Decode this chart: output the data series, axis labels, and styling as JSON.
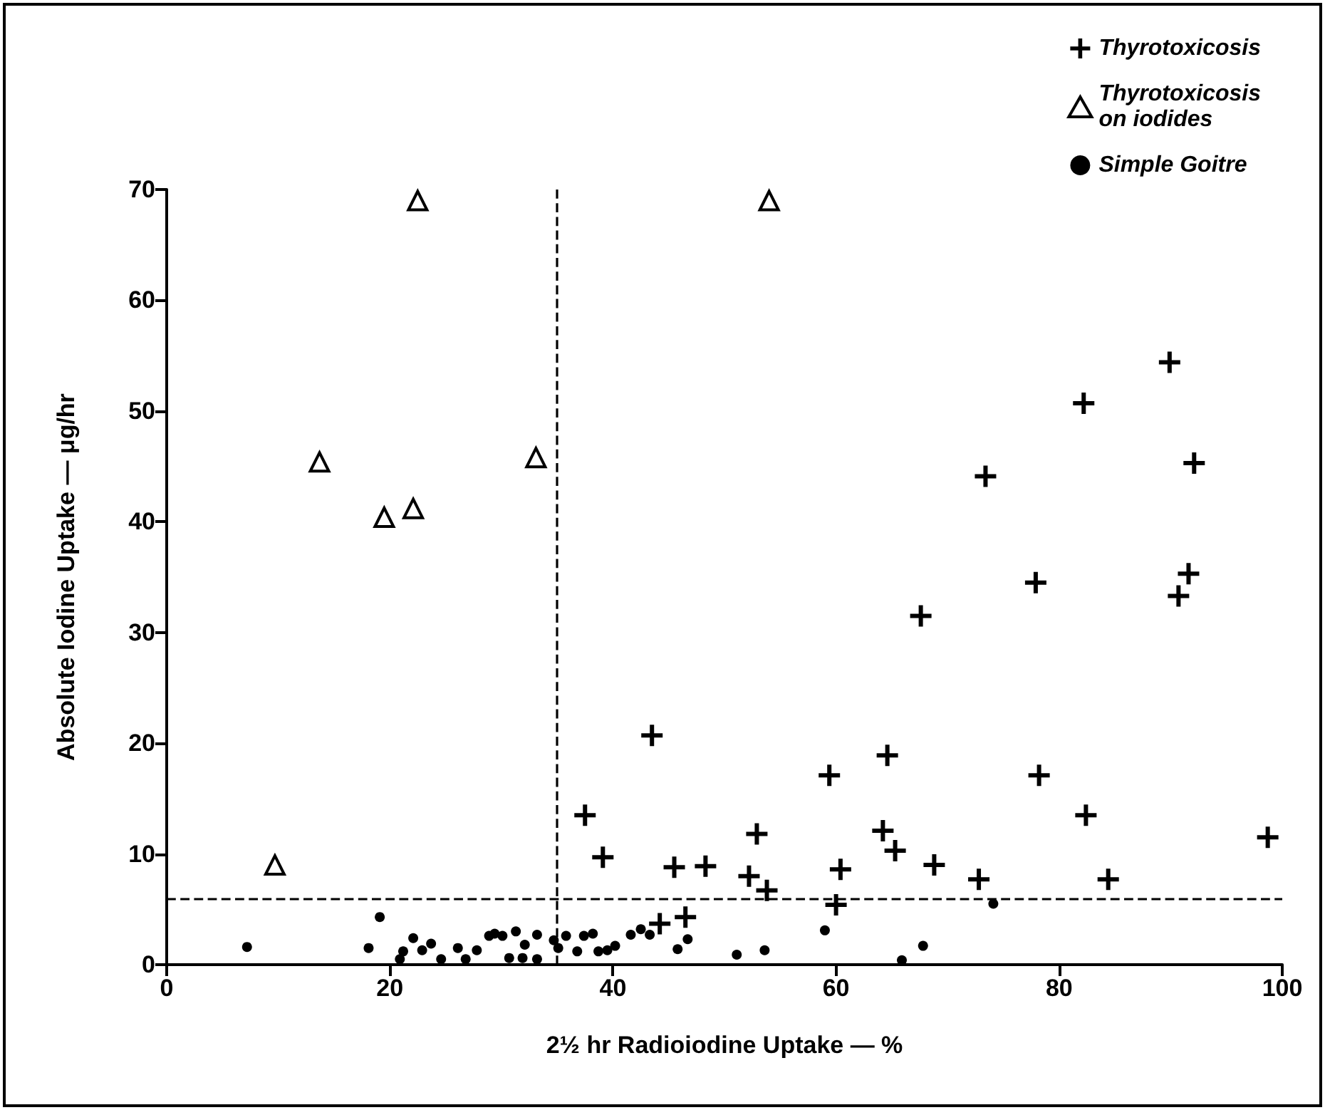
{
  "chart_data": {
    "type": "scatter",
    "xlabel": "2½ hr Radioiodine Uptake — %",
    "ylabel": "Absolute Iodine Uptake — μg/hr",
    "xlim": [
      0,
      100
    ],
    "xticks": [
      0,
      20,
      40,
      60,
      80,
      100
    ],
    "ylim": [
      0,
      70
    ],
    "yticks": [
      0,
      10,
      20,
      30,
      40,
      50,
      60,
      70
    ],
    "grid": false,
    "legend": "top right",
    "ref_lines": [
      {
        "axis": "x",
        "value": 35,
        "line_style": "dashed"
      },
      {
        "axis": "y",
        "value": 6,
        "line_style": "dashed"
      }
    ],
    "series": [
      {
        "name": "Thyrotoxicosis",
        "color": "#000000",
        "marker": "cross",
        "x": [
          43.5,
          37.5,
          52.9,
          39.1,
          45.5,
          48.3,
          52.2,
          44.2,
          46.5,
          53.8,
          59.4,
          60.4,
          60.0,
          64.6,
          64.2,
          65.3,
          68.8,
          72.8,
          67.6,
          77.9,
          78.2,
          82.4,
          84.4,
          98.7,
          90.7,
          91.6,
          89.9,
          82.2,
          92.1,
          73.4
        ],
        "values": [
          20.7,
          13.5,
          11.8,
          9.7,
          8.8,
          8.9,
          8.0,
          3.7,
          4.3,
          6.7,
          17.1,
          8.6,
          5.4,
          18.9,
          12.1,
          10.3,
          9.0,
          7.7,
          31.5,
          34.5,
          17.1,
          13.5,
          7.7,
          11.5,
          33.3,
          35.3,
          54.4,
          50.7,
          45.3,
          44.1
        ]
      },
      {
        "name": "Thyrotoxicosis\non iodides",
        "color": "#000000",
        "marker": "triangle",
        "x": [
          22.5,
          54.0,
          13.7,
          33.1,
          19.5,
          22.1,
          9.7
        ],
        "values": [
          69,
          69,
          45.4,
          45.8,
          40.4,
          41.2,
          9.0
        ]
      },
      {
        "name": "Simple Goitre",
        "color": "#000000",
        "marker": "circle",
        "x": [
          7.2,
          18.1,
          19.1,
          21.2,
          20.9,
          22.1,
          22.9,
          23.7,
          24.6,
          26.1,
          26.8,
          27.8,
          28.9,
          29.4,
          30.1,
          31.3,
          30.7,
          31.9,
          32.1,
          33.2,
          33.2,
          34.7,
          35.1,
          35.8,
          36.8,
          37.4,
          38.2,
          38.7,
          39.5,
          40.2,
          41.6,
          42.5,
          43.3,
          45.8,
          46.7,
          51.1,
          53.6,
          59.0,
          65.9,
          67.8,
          74.1
        ],
        "values": [
          1.6,
          1.5,
          4.3,
          1.2,
          0.5,
          2.4,
          1.3,
          1.9,
          0.5,
          1.5,
          0.5,
          1.3,
          2.6,
          2.8,
          2.6,
          3.0,
          0.6,
          0.6,
          1.8,
          2.7,
          0.5,
          2.2,
          1.5,
          2.6,
          1.2,
          2.6,
          2.8,
          1.2,
          1.3,
          1.7,
          2.7,
          3.2,
          2.7,
          1.4,
          2.3,
          0.9,
          1.3,
          3.1,
          0.4,
          1.7,
          5.5
        ]
      }
    ]
  }
}
